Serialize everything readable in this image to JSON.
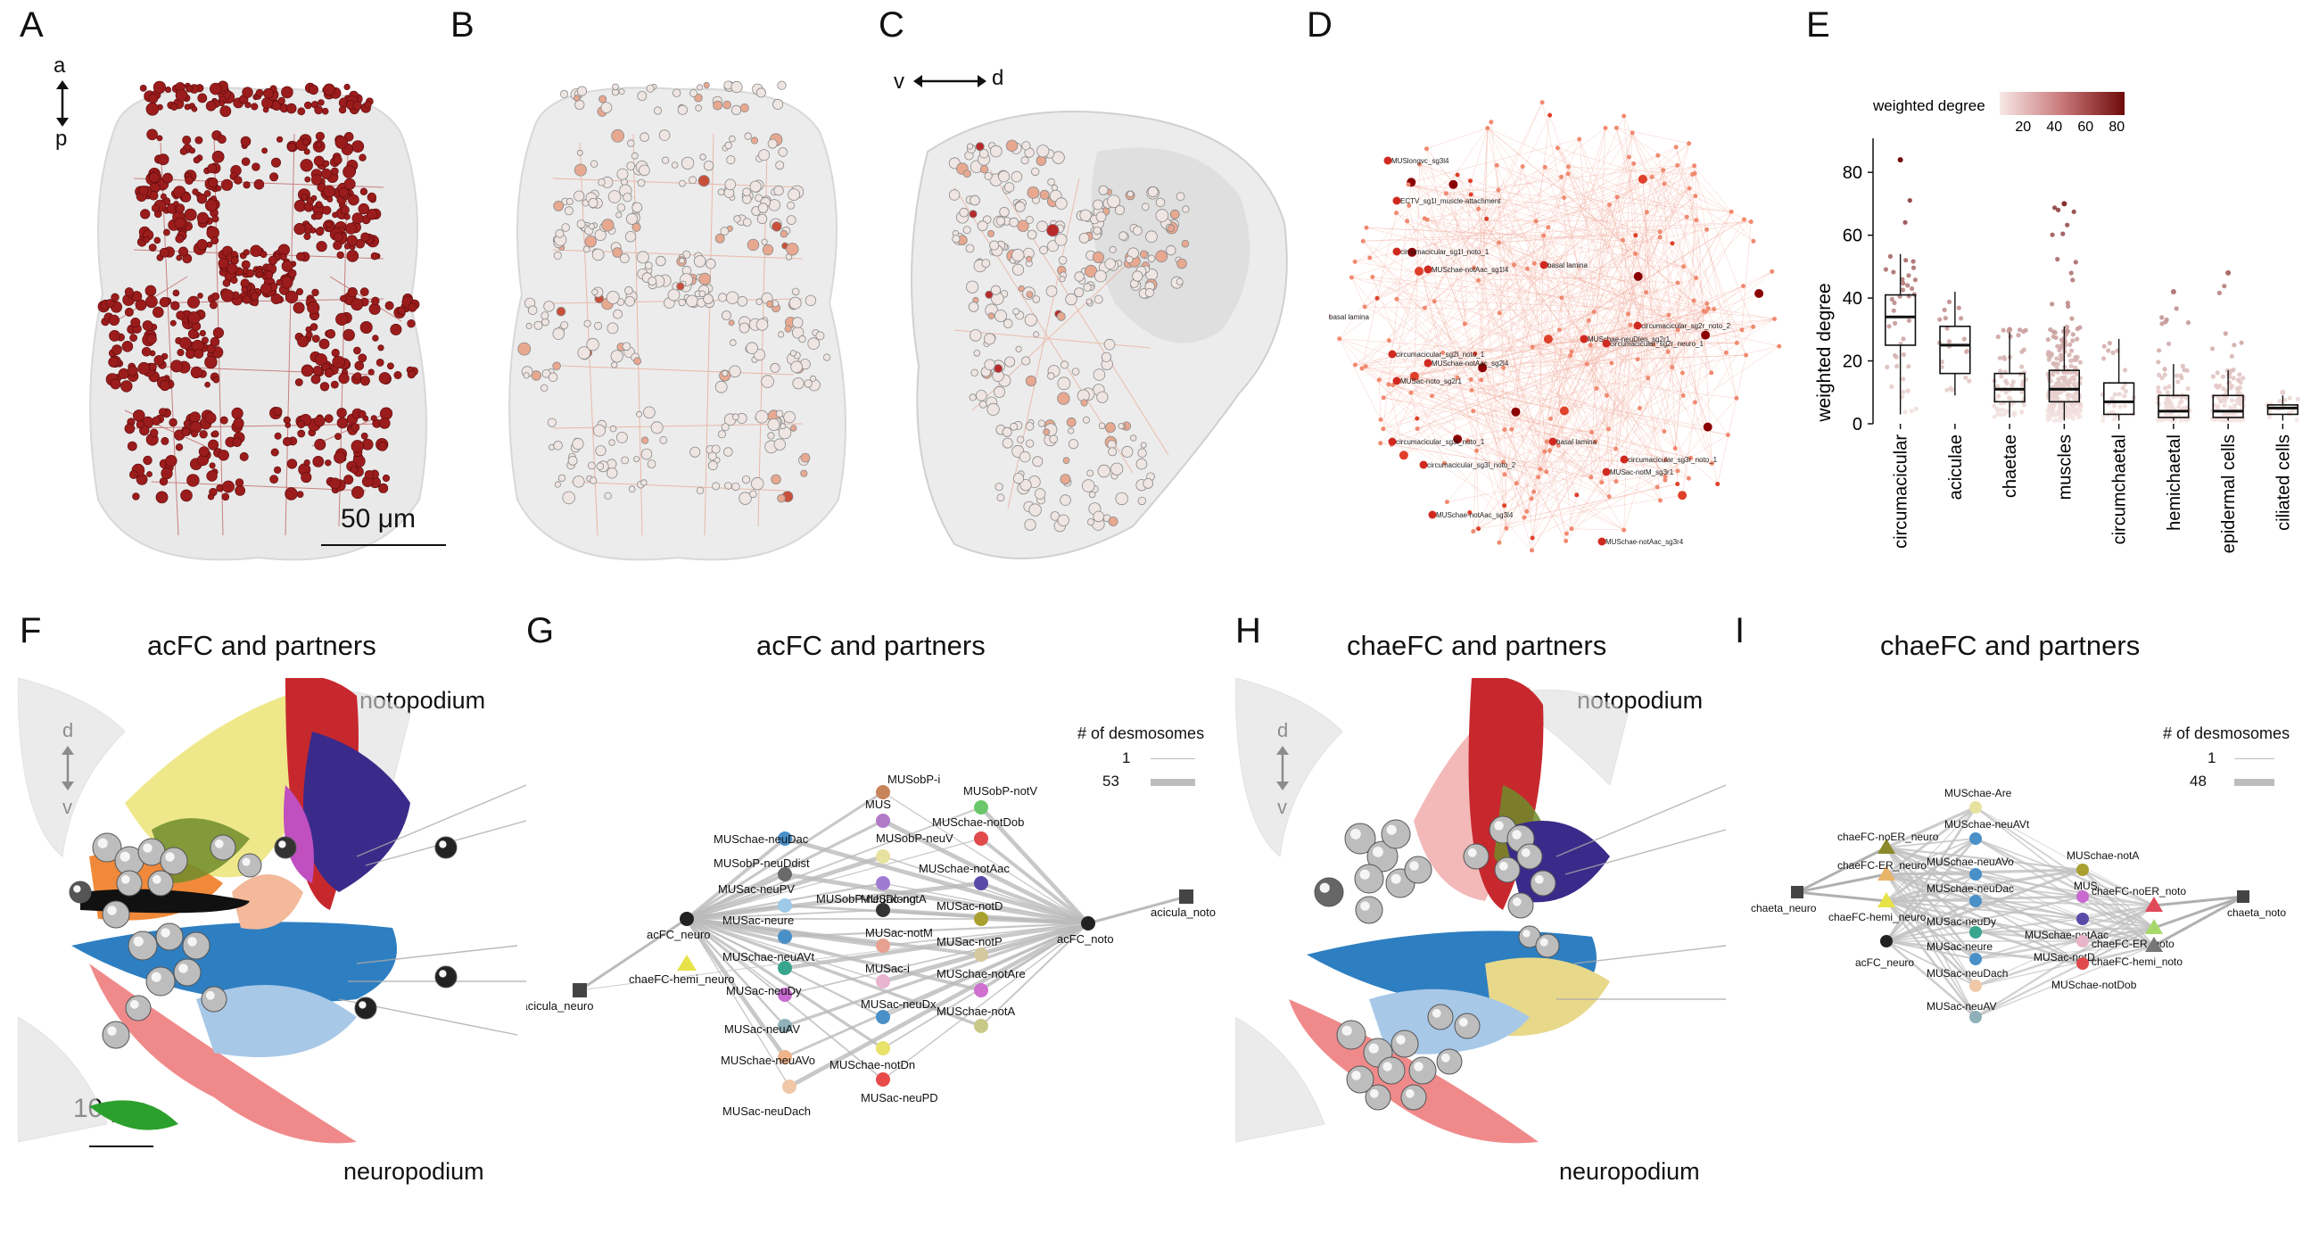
{
  "panels": {
    "A": {
      "letter": "A",
      "axis_a": "a",
      "axis_p": "p",
      "scale_bar": "50 μm"
    },
    "B": {
      "letter": "B"
    },
    "C": {
      "letter": "C",
      "axis_v": "v",
      "axis_d": "d"
    },
    "D": {
      "letter": "D",
      "node_labels": [
        "MUSlongvc_sg3l4",
        "ECTV_sg1l_muscle-attachment",
        "circumacicular_sg1l_noto_1",
        "MUSchae-notAac_sg1l4",
        "basal lamina",
        "basal lamina",
        "circumacicular_sg2r_noto_2",
        "MUSchae-neuDlen_sg2r1",
        "circumacicular_sg2l_noto_1",
        "MUSchae-notAac_sg2l4",
        "MUSac-noto_sg2r1",
        "circumacicular_sg3l_noto_1",
        "basal lamina",
        "circumacicular_sg3l_noto_2",
        "circumacicular_sg3r_noto_1",
        "MUSac-notM_sg3r1",
        "MUSchae-notAac_sg3l4",
        "MUSchae-notAac_sg3r4",
        "circumacicular_sg2r_neuro_1"
      ]
    },
    "E": {
      "letter": "E",
      "legend_title": "weighted degree"
    },
    "F": {
      "letter": "F",
      "title": "acFC and partners",
      "top": "notopodium",
      "bottom": "neuropodium",
      "axis_d": "d",
      "axis_v": "v",
      "scale_bar": "10 μm"
    },
    "G": {
      "letter": "G",
      "title": "acFC and partners",
      "legend_title": "# of desmosomes",
      "legend_min": "1",
      "legend_max": "53"
    },
    "H": {
      "letter": "H",
      "title": "chaeFC and partners",
      "top": "notopodium",
      "bottom": "neuropodium",
      "axis_d": "d",
      "axis_v": "v"
    },
    "I": {
      "letter": "I",
      "title": "chaeFC and partners",
      "legend_title": "# of desmosomes",
      "legend_min": "1",
      "legend_max": "48"
    }
  },
  "chart_data": {
    "type": "box",
    "ylabel": "weighted degree",
    "ylim": [
      0,
      88
    ],
    "yticks": [
      0,
      20,
      40,
      60,
      80
    ],
    "categories": [
      "circumacicular",
      "aciculae",
      "chaetae",
      "muscles",
      "circumchaetal",
      "hemichaetal",
      "epidermal cells",
      "ciliated cells"
    ],
    "boxes": [
      {
        "q1": 25,
        "median": 34,
        "q3": 41,
        "whisker_low": 3,
        "whisker_high": 54,
        "max": 84
      },
      {
        "q1": 16,
        "median": 25,
        "q3": 31,
        "whisker_low": 9,
        "whisker_high": 42,
        "max": 42
      },
      {
        "q1": 7,
        "median": 11,
        "q3": 16,
        "whisker_low": 2,
        "whisker_high": 29,
        "max": 30
      },
      {
        "q1": 7,
        "median": 11,
        "q3": 17,
        "whisker_low": 1,
        "whisker_high": 31,
        "max": 70
      },
      {
        "q1": 3,
        "median": 7,
        "q3": 13,
        "whisker_low": 1,
        "whisker_high": 27,
        "max": 27
      },
      {
        "q1": 2,
        "median": 4,
        "q3": 9,
        "whisker_low": 1,
        "whisker_high": 19,
        "max": 42
      },
      {
        "q1": 2,
        "median": 4,
        "q3": 9,
        "whisker_low": 1,
        "whisker_high": 17,
        "max": 48
      },
      {
        "q1": 3,
        "median": 5,
        "q3": 6,
        "whisker_low": 1,
        "whisker_high": 9,
        "max": 10
      }
    ],
    "colorbar": {
      "ticks": [
        20,
        40,
        60,
        80
      ],
      "low_color": "#f7e8e6",
      "high_color": "#6e0a0a"
    }
  },
  "network_G": {
    "nodes": [
      {
        "label": "acicula_neuro",
        "shape": "square",
        "color": "#444444"
      },
      {
        "label": "acFC_neuro",
        "shape": "circle",
        "color": "#222222"
      },
      {
        "label": "chaeFC-hemi_neuro",
        "shape": "triangle",
        "color": "#e8e24a"
      },
      {
        "label": "MUSchae-neuDac",
        "shape": "circle",
        "color": "#4a90c8"
      },
      {
        "label": "MUSobP-neuDdist",
        "shape": "circle",
        "color": "#6a6a6a"
      },
      {
        "label": "MUSac-neuPV",
        "shape": "circle",
        "color": "#9ec9e8"
      },
      {
        "label": "MUSac-neure",
        "shape": "circle",
        "color": "#4a90c8"
      },
      {
        "label": "MUSchae-neuAVt",
        "shape": "circle",
        "color": "#3aa58f"
      },
      {
        "label": "MUSac-neuDy",
        "shape": "circle",
        "color": "#c86ad0"
      },
      {
        "label": "MUSac-neuAV",
        "shape": "circle",
        "color": "#8fb0b8"
      },
      {
        "label": "MUSchae-neuAVo",
        "shape": "circle",
        "color": "#f0b48c"
      },
      {
        "label": "MUSac-neuDach",
        "shape": "circle",
        "color": "#f0c8a8"
      },
      {
        "label": "MUSobP-i",
        "shape": "circle",
        "color": "#c8845a"
      },
      {
        "label": "MUS",
        "shape": "circle",
        "color": "#b07ac8"
      },
      {
        "label": "MUSobP-neuV",
        "shape": "circle",
        "color": "#e8e2a0"
      },
      {
        "label": "MUSobP-neuDlong",
        "shape": "circle",
        "color": "#a07ad0"
      },
      {
        "label": "MUSac-notA",
        "shape": "circle",
        "color": "#333333"
      },
      {
        "label": "MUSac-notM",
        "shape": "circle",
        "color": "#e8a090"
      },
      {
        "label": "MUSac-i",
        "shape": "circle",
        "color": "#e8b4d0"
      },
      {
        "label": "MUSac-neuDx",
        "shape": "circle",
        "color": "#4a90c8"
      },
      {
        "label": "MUSchae-notDn",
        "shape": "circle",
        "color": "#e8e26a"
      },
      {
        "label": "MUSac-neuPD",
        "shape": "circle",
        "color": "#e84a4a"
      },
      {
        "label": "MUSobP-notV",
        "shape": "circle",
        "color": "#6ac86a"
      },
      {
        "label": "MUSchae-notDob",
        "shape": "circle",
        "color": "#e04a4a"
      },
      {
        "label": "MUSchae-notAac",
        "shape": "circle",
        "color": "#5a4aa8"
      },
      {
        "label": "MUSac-notD",
        "shape": "circle",
        "color": "#aaa030"
      },
      {
        "label": "MUSac-notP",
        "shape": "circle",
        "color": "#d4c8a0"
      },
      {
        "label": "MUSchae-notAre",
        "shape": "circle",
        "color": "#d070d0"
      },
      {
        "label": "MUSchae-notA",
        "shape": "circle",
        "color": "#c8c888"
      },
      {
        "label": "acFC_noto",
        "shape": "circle",
        "color": "#222222"
      },
      {
        "label": "acicula_noto",
        "shape": "square",
        "color": "#444444"
      }
    ]
  },
  "network_I": {
    "nodes": [
      {
        "label": "chaeta_neuro",
        "shape": "square",
        "color": "#444444"
      },
      {
        "label": "chaeFC-noER_neuro",
        "shape": "triangle",
        "color": "#8a8a2a"
      },
      {
        "label": "chaeFC-ER_neuro",
        "shape": "triangle",
        "color": "#e8b46a"
      },
      {
        "label": "chaeFC-hemi_neuro",
        "shape": "triangle",
        "color": "#e8e24a"
      },
      {
        "label": "acFC_neuro",
        "shape": "circle",
        "color": "#222222"
      },
      {
        "label": "MUSchae-Are",
        "shape": "circle",
        "color": "#e8e2a0"
      },
      {
        "label": "MUSchae-neuAVt",
        "shape": "circle",
        "color": "#4a90c8"
      },
      {
        "label": "MUSchae-neuAVo",
        "shape": "circle",
        "color": "#4a90c8"
      },
      {
        "label": "MUSchae-neuDac",
        "shape": "circle",
        "color": "#4a90c8"
      },
      {
        "label": "MUSac-neuDy",
        "shape": "circle",
        "color": "#3aa58f"
      },
      {
        "label": "MUSac-neure",
        "shape": "circle",
        "color": "#4a90c8"
      },
      {
        "label": "MUSac-neuDach",
        "shape": "circle",
        "color": "#f0c8a8"
      },
      {
        "label": "MUSac-neuAV",
        "shape": "circle",
        "color": "#8fb0b8"
      },
      {
        "label": "MUSchae-notA",
        "shape": "circle",
        "color": "#aaa030"
      },
      {
        "label": "MUS",
        "shape": "circle",
        "color": "#c86ad0"
      },
      {
        "label": "MUSchae-notAac",
        "shape": "circle",
        "color": "#5a4aa8"
      },
      {
        "label": "MUSac-notD",
        "shape": "circle",
        "color": "#e8b4c8"
      },
      {
        "label": "MUSchae-notDob",
        "shape": "circle",
        "color": "#e04a4a"
      },
      {
        "label": "chaeFC-noER_noto",
        "shape": "triangle",
        "color": "#e04a5a"
      },
      {
        "label": "chaeFC-ER_noto",
        "shape": "triangle",
        "color": "#a8d86a"
      },
      {
        "label": "chaeFC-hemi_noto",
        "shape": "triangle",
        "color": "#777777"
      },
      {
        "label": "chaeta_noto",
        "shape": "square",
        "color": "#444444"
      }
    ]
  }
}
